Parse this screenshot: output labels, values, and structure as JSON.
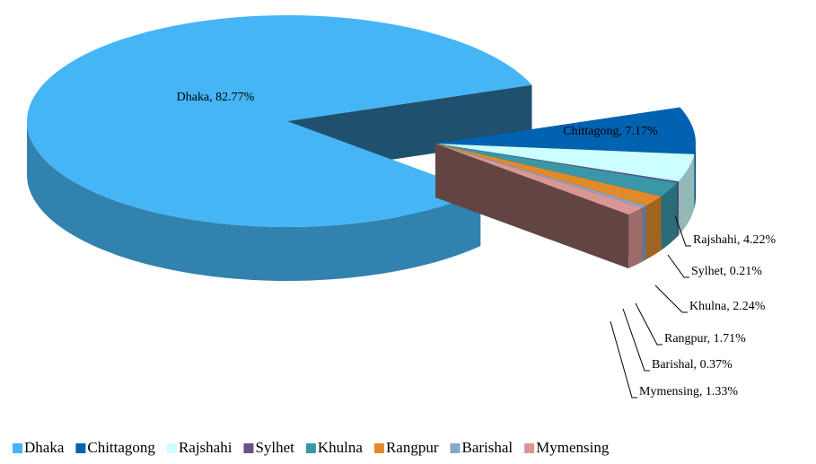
{
  "chart_data": {
    "type": "pie",
    "three_d": true,
    "categories": [
      "Dhaka",
      "Chittagong",
      "Rajshahi",
      "Sylhet",
      "Khulna",
      "Rangpur",
      "Barishal",
      "Mymensing"
    ],
    "values": [
      82.77,
      7.17,
      4.22,
      0.21,
      2.24,
      1.71,
      0.37,
      1.33
    ],
    "value_labels": [
      "Dhaka, 82.77%",
      "Chittagong, 7.17%",
      "Rajshahi, 4.22%",
      "Sylhet, 0.21%",
      "Khulna, 2.24%",
      "Rangpur, 1.71%",
      "Barishal, 0.37%",
      "Mymensing, 1.33%"
    ],
    "colors": [
      "#45b5f5",
      "#0062b0",
      "#ccffff",
      "#6a4f8a",
      "#3a97a8",
      "#e08a2c",
      "#8aa5cc",
      "#d99694"
    ],
    "legend": "bottom"
  }
}
